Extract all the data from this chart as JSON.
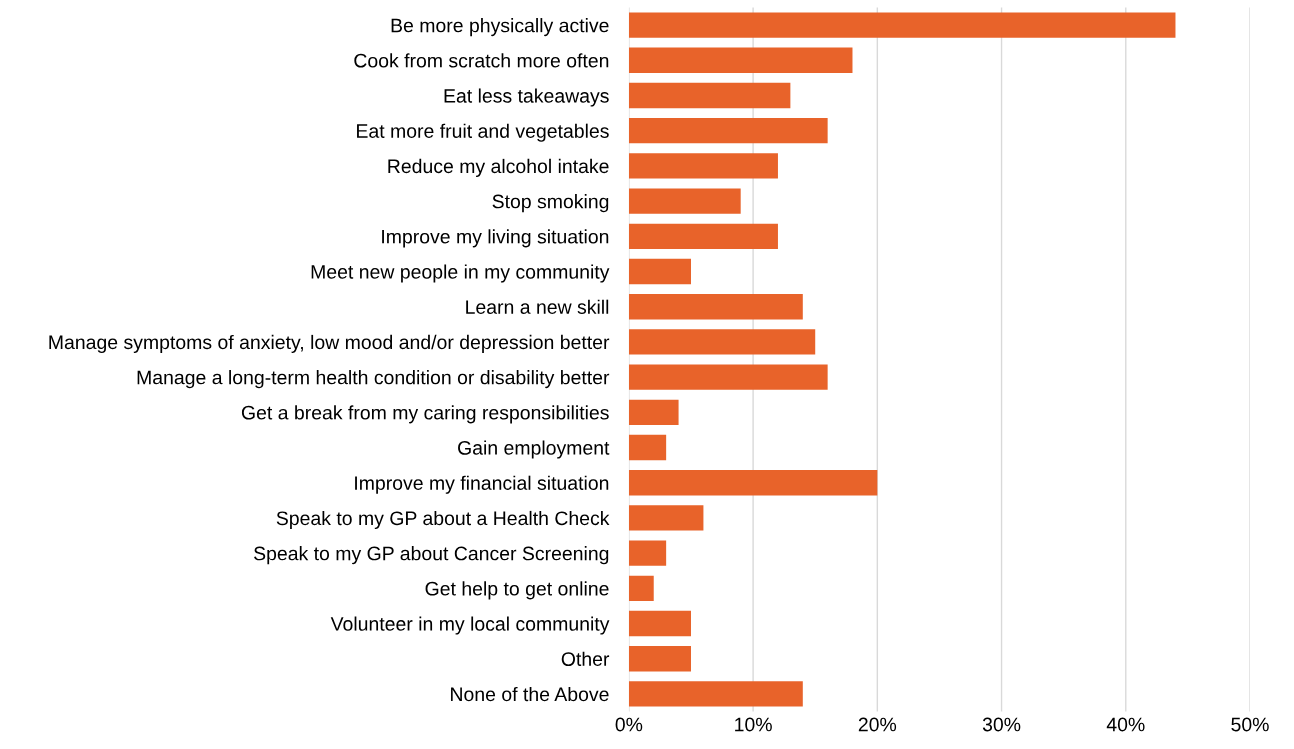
{
  "chart_data": {
    "type": "bar",
    "orientation": "horizontal",
    "categories": [
      "Be more physically active",
      "Cook from scratch more often",
      "Eat less takeaways",
      "Eat more fruit and vegetables",
      "Reduce my alcohol intake",
      "Stop smoking",
      "Improve my living situation",
      "Meet new people in my community",
      "Learn a new skill",
      "Manage symptoms of anxiety, low mood and/or depression better",
      "Manage a long-term health condition or disability better",
      "Get a break from my caring responsibilities",
      "Gain employment",
      "Improve my financial situation",
      "Speak to my GP about a Health Check",
      "Speak to my GP about Cancer Screening",
      "Get help to get online",
      "Volunteer in my local community",
      "Other",
      "None of the Above"
    ],
    "values": [
      44,
      18,
      13,
      16,
      12,
      9,
      12,
      5,
      14,
      15,
      16,
      4,
      3,
      20,
      6,
      3,
      2,
      5,
      5,
      14
    ],
    "color": "#e8632a",
    "xlim": [
      0,
      50
    ],
    "xticks": [
      {
        "value": 0,
        "label": "0%"
      },
      {
        "value": 10,
        "label": "10%"
      },
      {
        "value": 20,
        "label": "20%"
      },
      {
        "value": 30,
        "label": "30%"
      },
      {
        "value": 40,
        "label": "40%"
      },
      {
        "value": 50,
        "label": "50%"
      }
    ],
    "grid": "x",
    "legend": false
  }
}
